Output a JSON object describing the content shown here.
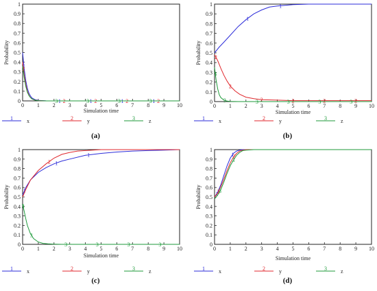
{
  "chart_data": [
    {
      "type": "line",
      "panel_label": "(a)",
      "xlabel": "Simulation time",
      "ylabel": "Probability",
      "xlim": [
        0,
        10
      ],
      "ylim": [
        0,
        1
      ],
      "xticks": [
        "0",
        "1",
        "2",
        "3",
        "4",
        "5",
        "6",
        "7",
        "8",
        "9",
        "10"
      ],
      "yticks": [
        "0",
        "0.1",
        "0.2",
        "0.3",
        "0.4",
        "0.5",
        "0.6",
        "0.7",
        "0.8",
        "0.9",
        "1"
      ],
      "series": [
        {
          "name": "x",
          "marker": "1",
          "color": "#2b2bd9",
          "x": [
            0,
            0.1,
            0.2,
            0.3,
            0.4,
            0.5,
            0.6,
            0.8,
            1,
            1.5,
            2,
            4,
            6,
            8,
            10
          ],
          "y": [
            0.5,
            0.33,
            0.21,
            0.13,
            0.08,
            0.05,
            0.03,
            0.012,
            0.005,
            0.001,
            0,
            0,
            0,
            0,
            0
          ],
          "marker_x": [
            0.08,
            2.35,
            4.35,
            6.35,
            8.35
          ]
        },
        {
          "name": "y",
          "marker": "2",
          "color": "#e0272c",
          "x": [
            0,
            0.1,
            0.2,
            0.3,
            0.4,
            0.5,
            0.6,
            0.8,
            1,
            1.5,
            2,
            4,
            6,
            8,
            10
          ],
          "y": [
            0.4,
            0.27,
            0.17,
            0.1,
            0.06,
            0.035,
            0.02,
            0.008,
            0.003,
            0,
            0,
            0,
            0,
            0,
            0
          ],
          "marker_x": [
            0.05,
            2.65,
            4.65,
            6.65,
            8.65
          ]
        },
        {
          "name": "z",
          "marker": "3",
          "color": "#1d9a3a",
          "x": [
            0,
            0.1,
            0.2,
            0.3,
            0.4,
            0.5,
            0.6,
            0.8,
            1,
            1.5,
            2,
            4,
            6,
            8,
            10
          ],
          "y": [
            0.36,
            0.24,
            0.15,
            0.09,
            0.055,
            0.033,
            0.02,
            0.007,
            0.002,
            0,
            0,
            0,
            0,
            0,
            0
          ],
          "marker_x": [
            2.15,
            4.15,
            6.15,
            8.15
          ]
        }
      ]
    },
    {
      "type": "line",
      "panel_label": "(b)",
      "xlabel": "Simulation time",
      "ylabel": "Probability",
      "xlim": [
        0,
        10
      ],
      "ylim": [
        0,
        1
      ],
      "xticks": [
        "0",
        "1",
        "2",
        "3",
        "4",
        "5",
        "6",
        "7",
        "8",
        "9",
        "10"
      ],
      "yticks": [
        "0",
        "0.1",
        "0.2",
        "0.3",
        "0.4",
        "0.5",
        "0.6",
        "0.7",
        "0.8",
        "0.9",
        "1"
      ],
      "series": [
        {
          "name": "x",
          "marker": "1",
          "color": "#2b2bd9",
          "x": [
            0,
            0.3,
            0.6,
            1,
            1.5,
            2,
            2.5,
            3,
            3.5,
            4,
            5,
            6,
            7,
            8,
            10
          ],
          "y": [
            0.5,
            0.56,
            0.61,
            0.68,
            0.77,
            0.84,
            0.9,
            0.94,
            0.97,
            0.98,
            0.995,
            1,
            1,
            1,
            1
          ],
          "marker_x": [
            2.1,
            4.2
          ]
        },
        {
          "name": "y",
          "marker": "2",
          "color": "#e0272c",
          "x": [
            0,
            0.2,
            0.4,
            0.6,
            0.8,
            1,
            1.3,
            1.6,
            2,
            2.5,
            3,
            4,
            5,
            6,
            8,
            10
          ],
          "y": [
            0.48,
            0.42,
            0.34,
            0.27,
            0.21,
            0.16,
            0.11,
            0.075,
            0.045,
            0.03,
            0.02,
            0.015,
            0.01,
            0.01,
            0.01,
            0.01
          ],
          "marker_x": [
            0.08,
            1.0,
            3.0,
            5.0,
            7.0,
            9.0
          ]
        },
        {
          "name": "z",
          "marker": "3",
          "color": "#1d9a3a",
          "x": [
            0,
            0.1,
            0.2,
            0.3,
            0.4,
            0.6,
            0.8,
            1,
            1.5,
            2,
            4,
            6,
            8,
            10
          ],
          "y": [
            0.35,
            0.22,
            0.13,
            0.07,
            0.04,
            0.015,
            0.005,
            0.002,
            0,
            0,
            0,
            0,
            0,
            0
          ],
          "marker_x": [
            0.05,
            0.65,
            2.7,
            4.7,
            6.7,
            8.7
          ]
        }
      ]
    },
    {
      "type": "line",
      "panel_label": "(c)",
      "xlabel": "Simulation time",
      "ylabel": "Probability",
      "xlim": [
        0,
        10
      ],
      "ylim": [
        0,
        1
      ],
      "xticks": [
        "0",
        "1",
        "2",
        "3",
        "4",
        "5",
        "6",
        "7",
        "8",
        "9",
        "10"
      ],
      "yticks": [
        "0",
        "0.1",
        "0.2",
        "0.3",
        "0.4",
        "0.5",
        "0.6",
        "0.7",
        "0.8",
        "0.9",
        "1"
      ],
      "series": [
        {
          "name": "x",
          "marker": "1",
          "color": "#2b2bd9",
          "x": [
            0,
            0.2,
            0.5,
            1,
            1.5,
            2,
            2.5,
            3,
            4,
            5,
            6,
            7,
            8,
            9,
            10
          ],
          "y": [
            0.52,
            0.6,
            0.68,
            0.76,
            0.81,
            0.85,
            0.88,
            0.9,
            0.94,
            0.96,
            0.975,
            0.985,
            0.99,
            0.995,
            1
          ],
          "marker_x": [
            0.12,
            2.15,
            4.2
          ]
        },
        {
          "name": "y",
          "marker": "2",
          "color": "#e0272c",
          "x": [
            0,
            0.2,
            0.5,
            1,
            1.5,
            2,
            2.5,
            3,
            3.5,
            4,
            5,
            6,
            8,
            10
          ],
          "y": [
            0.5,
            0.58,
            0.68,
            0.78,
            0.85,
            0.91,
            0.95,
            0.97,
            0.985,
            0.99,
            1,
            1,
            1,
            1
          ],
          "marker_x": [
            1.7
          ]
        },
        {
          "name": "z",
          "marker": "3",
          "color": "#1d9a3a",
          "x": [
            0,
            0.1,
            0.2,
            0.3,
            0.5,
            0.7,
            1,
            1.3,
            1.6,
            2,
            2.5,
            3,
            4,
            6,
            8,
            10
          ],
          "y": [
            0.42,
            0.35,
            0.27,
            0.2,
            0.11,
            0.06,
            0.025,
            0.01,
            0.005,
            0.002,
            0,
            0,
            0,
            0,
            0,
            0
          ],
          "marker_x": [
            0.02,
            0.55,
            2.75,
            4.75,
            6.75,
            8.75
          ]
        }
      ]
    },
    {
      "type": "line",
      "panel_label": "(d)",
      "xlabel": "Simulation time",
      "ylabel": "Probability",
      "xlim": [
        0,
        10
      ],
      "ylim": [
        0,
        1
      ],
      "xticks": [
        "0",
        "1",
        "2",
        "3",
        "4",
        "5",
        "6",
        "7",
        "8",
        "9",
        "10"
      ],
      "yticks": [
        "0",
        "0.1",
        "0.2",
        "0.3",
        "0.4",
        "0.5",
        "0.6",
        "0.7",
        "0.8",
        "0.9",
        "1"
      ],
      "series": [
        {
          "name": "x",
          "marker": "1",
          "color": "#2b2bd9",
          "x": [
            0,
            0.2,
            0.4,
            0.6,
            0.8,
            1,
            1.2,
            1.4,
            1.6,
            1.8,
            2,
            2.5,
            3,
            5,
            10
          ],
          "y": [
            0.5,
            0.55,
            0.63,
            0.73,
            0.83,
            0.91,
            0.96,
            0.985,
            0.995,
            1,
            1,
            1,
            1,
            1,
            1
          ],
          "marker_x": [
            0.15,
            1.15
          ]
        },
        {
          "name": "y",
          "marker": "2",
          "color": "#e0272c",
          "x": [
            0,
            0.2,
            0.4,
            0.6,
            0.8,
            1,
            1.2,
            1.4,
            1.6,
            1.8,
            2,
            2.5,
            3,
            5,
            10
          ],
          "y": [
            0.5,
            0.54,
            0.61,
            0.69,
            0.78,
            0.86,
            0.92,
            0.96,
            0.985,
            0.995,
            1,
            1,
            1,
            1,
            1
          ],
          "marker_x": [
            0.25,
            1.25
          ]
        },
        {
          "name": "z",
          "marker": "3",
          "color": "#1d9a3a",
          "x": [
            0,
            0.2,
            0.4,
            0.6,
            0.8,
            1,
            1.2,
            1.4,
            1.6,
            1.8,
            2,
            2.5,
            3,
            5,
            10
          ],
          "y": [
            0.48,
            0.52,
            0.58,
            0.66,
            0.75,
            0.83,
            0.89,
            0.94,
            0.97,
            0.99,
            0.995,
            1,
            1,
            1,
            1
          ],
          "marker_x": [
            0.35,
            1.2
          ]
        }
      ]
    }
  ]
}
